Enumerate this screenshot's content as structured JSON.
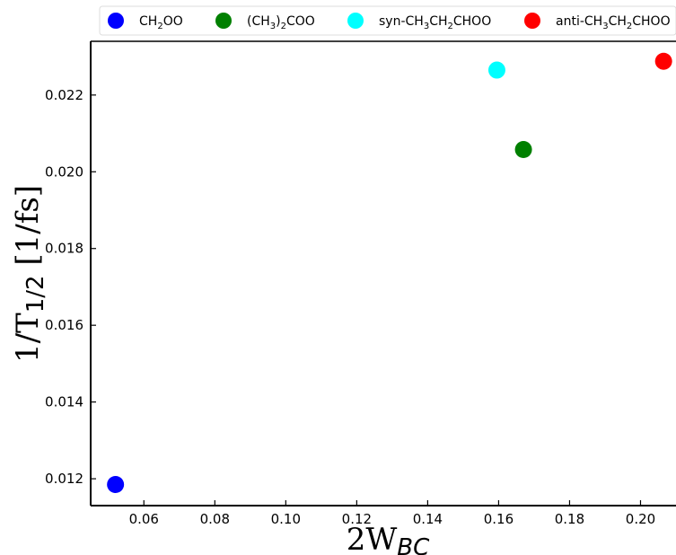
{
  "chart_data": {
    "type": "scatter",
    "title": "",
    "xlabel": {
      "base": "2W",
      "sub": "BC"
    },
    "ylabel": {
      "base": "1/T",
      "sub": "1/2",
      "suffix": " [1/fs]"
    },
    "xlim": [
      0.045,
      0.21
    ],
    "ylim": [
      0.0113,
      0.0234
    ],
    "xticks": [
      0.06,
      0.08,
      0.1,
      0.12,
      0.14,
      0.16,
      0.18,
      0.2
    ],
    "xtick_labels": [
      "0.06",
      "0.08",
      "0.10",
      "0.12",
      "0.14",
      "0.16",
      "0.18",
      "0.20"
    ],
    "yticks": [
      0.012,
      0.014,
      0.016,
      0.018,
      0.02,
      0.022
    ],
    "ytick_labels": [
      "0.012",
      "0.014",
      "0.016",
      "0.018",
      "0.020",
      "0.022"
    ],
    "grid": false,
    "legend_position": "top",
    "series": [
      {
        "name_parts": [
          [
            "CH",
            ""
          ],
          [
            "2",
            "sub"
          ],
          [
            "OO",
            ""
          ]
        ],
        "color": "#0000ff",
        "x": [
          0.052
        ],
        "y": [
          0.01185
        ]
      },
      {
        "name_parts": [
          [
            "(CH",
            ""
          ],
          [
            "3",
            "sub"
          ],
          [
            ")",
            ""
          ],
          [
            "2",
            "sub"
          ],
          [
            "COO",
            ""
          ]
        ],
        "color": "#008000",
        "x": [
          0.167
        ],
        "y": [
          0.02058
        ]
      },
      {
        "name_parts": [
          [
            "syn-CH",
            ""
          ],
          [
            "3",
            "sub"
          ],
          [
            "CH",
            ""
          ],
          [
            "2",
            "sub"
          ],
          [
            "CHOO",
            ""
          ]
        ],
        "color": "#00ffff",
        "x": [
          0.1595
        ],
        "y": [
          0.02265
        ]
      },
      {
        "name_parts": [
          [
            "anti-CH",
            ""
          ],
          [
            "3",
            "sub"
          ],
          [
            "CH",
            ""
          ],
          [
            "2",
            "sub"
          ],
          [
            "CHOO",
            ""
          ]
        ],
        "color": "#ff0000",
        "x": [
          0.2065
        ],
        "y": [
          0.02288
        ]
      }
    ]
  }
}
